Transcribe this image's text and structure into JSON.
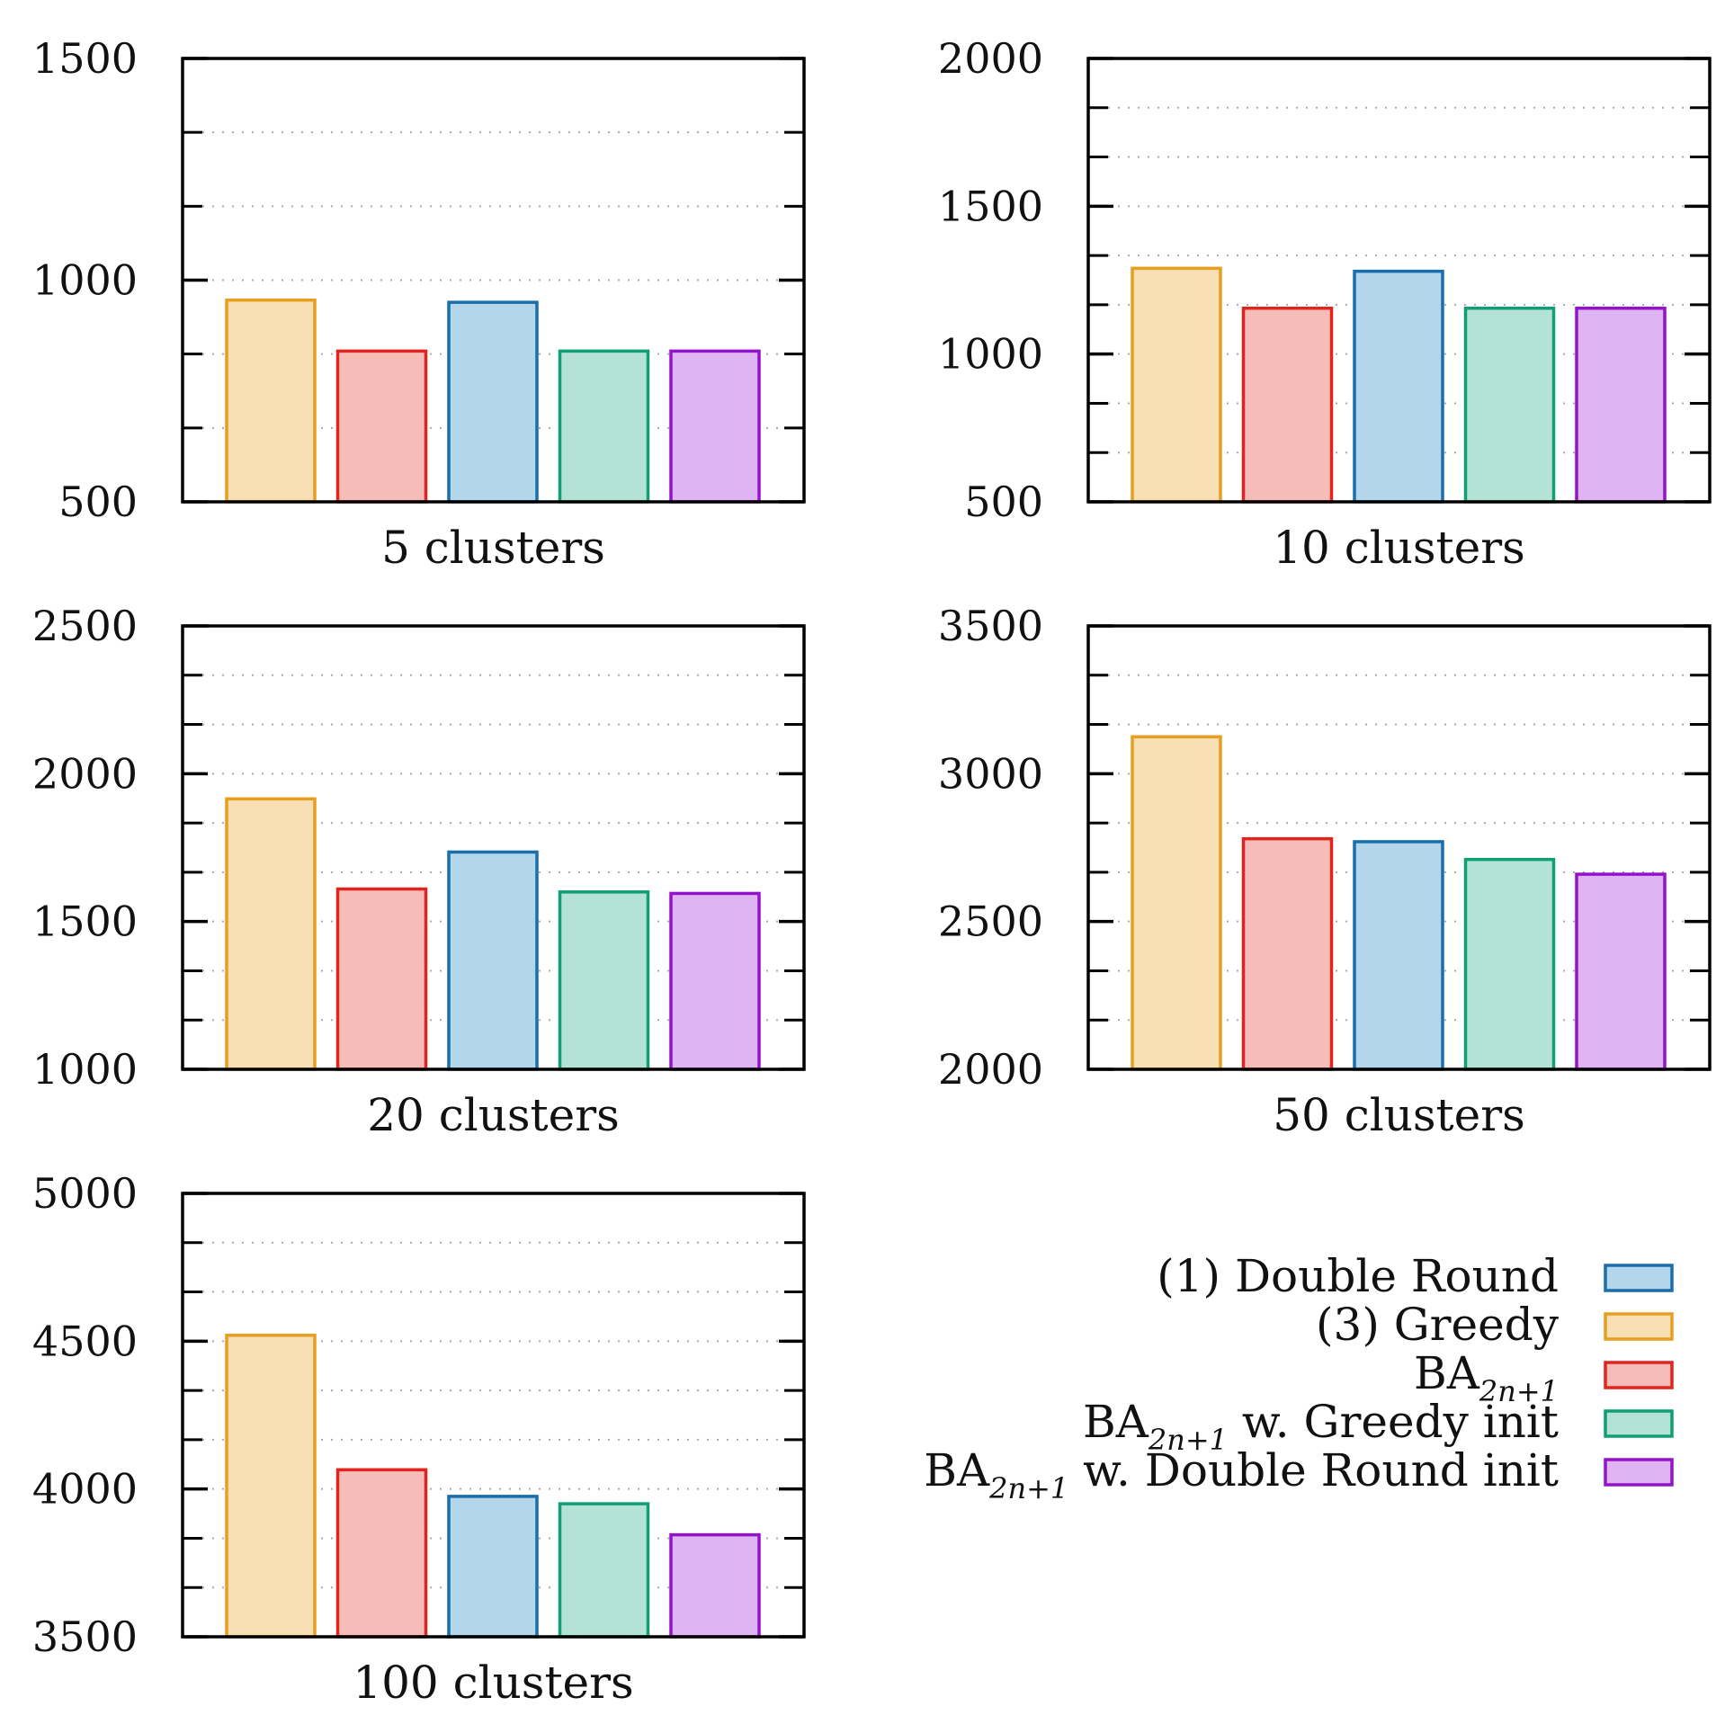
{
  "chart_data": [
    {
      "type": "bar",
      "xlabel": "5 clusters",
      "ylim": [
        500,
        1500
      ],
      "yticks": [
        500,
        1000,
        1500
      ],
      "minor_step": 166.67,
      "values": [
        {
          "series": "(3) Greedy",
          "value": 955
        },
        {
          "series": "BA2n+1",
          "value": 840
        },
        {
          "series": "(1) Double Round",
          "value": 950
        },
        {
          "series": "BA2n+1 w. Greedy init",
          "value": 840
        },
        {
          "series": "BA2n+1 w. Double Round init",
          "value": 840
        }
      ]
    },
    {
      "type": "bar",
      "xlabel": "10 clusters",
      "ylim": [
        500,
        2000
      ],
      "yticks": [
        500,
        1000,
        1500,
        2000
      ],
      "minor_step": 166.67,
      "values": [
        {
          "series": "(3) Greedy",
          "value": 1290
        },
        {
          "series": "BA2n+1",
          "value": 1155
        },
        {
          "series": "(1) Double Round",
          "value": 1280
        },
        {
          "series": "BA2n+1 w. Greedy init",
          "value": 1155
        },
        {
          "series": "BA2n+1 w. Double Round init",
          "value": 1155
        }
      ]
    },
    {
      "type": "bar",
      "xlabel": "20 clusters",
      "ylim": [
        1000,
        2500
      ],
      "yticks": [
        1000,
        1500,
        2000,
        2500
      ],
      "minor_step": 166.67,
      "values": [
        {
          "series": "(3) Greedy",
          "value": 1915
        },
        {
          "series": "BA2n+1",
          "value": 1610
        },
        {
          "series": "(1) Double Round",
          "value": 1735
        },
        {
          "series": "BA2n+1 w. Greedy init",
          "value": 1600
        },
        {
          "series": "BA2n+1 w. Double Round init",
          "value": 1595
        }
      ]
    },
    {
      "type": "bar",
      "xlabel": "50 clusters",
      "ylim": [
        2000,
        3500
      ],
      "yticks": [
        2000,
        2500,
        3000,
        3500
      ],
      "minor_step": 166.67,
      "values": [
        {
          "series": "(3) Greedy",
          "value": 3125
        },
        {
          "series": "BA2n+1",
          "value": 2780
        },
        {
          "series": "(1) Double Round",
          "value": 2770
        },
        {
          "series": "BA2n+1 w. Greedy init",
          "value": 2710
        },
        {
          "series": "BA2n+1 w. Double Round init",
          "value": 2660
        }
      ]
    },
    {
      "type": "bar",
      "xlabel": "100 clusters",
      "ylim": [
        3500,
        5000
      ],
      "yticks": [
        3500,
        4000,
        4500,
        5000
      ],
      "minor_step": 166.67,
      "values": [
        {
          "series": "(3) Greedy",
          "value": 4520
        },
        {
          "series": "BA2n+1",
          "value": 4065
        },
        {
          "series": "(1) Double Round",
          "value": 3975
        },
        {
          "series": "BA2n+1 w. Greedy init",
          "value": 3950
        },
        {
          "series": "BA2n+1 w. Double Round init",
          "value": 3845
        }
      ]
    }
  ],
  "series_styles": {
    "(1) Double Round": {
      "fill": "#b4d6ea",
      "stroke": "#1a6eab"
    },
    "(3) Greedy": {
      "fill": "#f8e0b4",
      "stroke": "#e89e1e"
    },
    "BA2n+1": {
      "fill": "#f6bcb8",
      "stroke": "#e3241e"
    },
    "BA2n+1 w. Greedy init": {
      "fill": "#b4e2d4",
      "stroke": "#109e74"
    },
    "BA2n+1 w. Double Round init": {
      "fill": "#dfb4f2",
      "stroke": "#9412cc"
    }
  },
  "legend": [
    {
      "series": "(1) Double Round",
      "label": "(1) Double Round",
      "base": "",
      "sub": "",
      "suffix": ""
    },
    {
      "series": "(3) Greedy",
      "label": "(3) Greedy",
      "base": "",
      "sub": "",
      "suffix": ""
    },
    {
      "series": "BA2n+1",
      "label": "",
      "base": "BA",
      "sub": "2n+1",
      "suffix": ""
    },
    {
      "series": "BA2n+1 w. Greedy init",
      "label": "",
      "base": "BA",
      "sub": "2n+1",
      "suffix": " w. Greedy init"
    },
    {
      "series": "BA2n+1 w. Double Round init",
      "label": "",
      "base": "BA",
      "sub": "2n+1",
      "suffix": " w. Double Round init"
    }
  ]
}
